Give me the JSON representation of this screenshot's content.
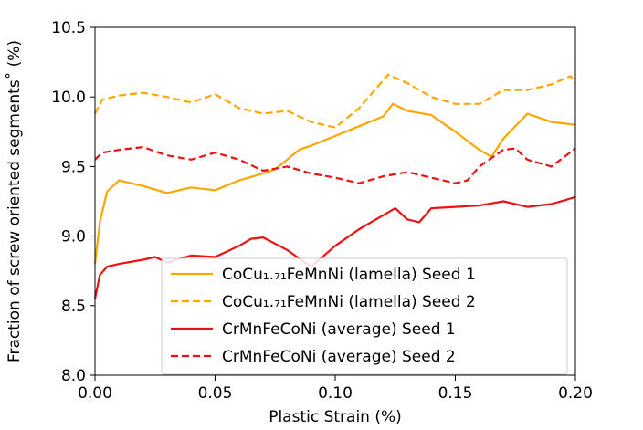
{
  "chart_data": {
    "type": "line",
    "title": "",
    "xlabel": "Plastic Strain (%)",
    "ylabel": "Fraction of screw oriented segments˚ (%)",
    "xlim": [
      0.0,
      0.2
    ],
    "ylim": [
      8.0,
      10.5
    ],
    "xticks": [
      0.0,
      0.05,
      0.1,
      0.15,
      0.2
    ],
    "xtick_labels": [
      "0.00",
      "0.05",
      "0.10",
      "0.15",
      "0.20"
    ],
    "yticks": [
      8.0,
      8.5,
      9.0,
      9.5,
      10.0,
      10.5
    ],
    "ytick_labels": [
      "8.0",
      "8.5",
      "9.0",
      "9.5",
      "10.0",
      "10.5"
    ],
    "grid": false,
    "legend_position": "lower-center",
    "series": [
      {
        "name": "CoCu₁.₇₁FeMnNi (lamella) Seed 1",
        "color": "#FFA500",
        "dash": "solid",
        "x": [
          0.0,
          0.002,
          0.005,
          0.01,
          0.02,
          0.03,
          0.04,
          0.05,
          0.06,
          0.07,
          0.075,
          0.08,
          0.085,
          0.09,
          0.1,
          0.11,
          0.12,
          0.124,
          0.13,
          0.14,
          0.15,
          0.16,
          0.165,
          0.17,
          0.18,
          0.19,
          0.2
        ],
        "y": [
          8.8,
          9.1,
          9.32,
          9.4,
          9.36,
          9.31,
          9.35,
          9.33,
          9.4,
          9.45,
          9.48,
          9.55,
          9.62,
          9.65,
          9.72,
          9.79,
          9.86,
          9.95,
          9.9,
          9.87,
          9.75,
          9.62,
          9.57,
          9.7,
          9.88,
          9.82,
          9.8
        ]
      },
      {
        "name": "CoCu₁.₇₁FeMnNi (lamella) Seed 2",
        "color": "#FFA500",
        "dash": "dashed",
        "x": [
          0.0,
          0.003,
          0.01,
          0.02,
          0.03,
          0.04,
          0.05,
          0.06,
          0.07,
          0.08,
          0.09,
          0.1,
          0.11,
          0.12,
          0.122,
          0.13,
          0.14,
          0.15,
          0.16,
          0.17,
          0.18,
          0.19,
          0.198,
          0.2
        ],
        "y": [
          9.88,
          9.98,
          10.01,
          10.03,
          10.0,
          9.96,
          10.02,
          9.92,
          9.88,
          9.9,
          9.82,
          9.78,
          9.92,
          10.12,
          10.16,
          10.1,
          10.0,
          9.95,
          9.95,
          10.05,
          10.05,
          10.09,
          10.15,
          10.1
        ]
      },
      {
        "name": "CrMnFeCoNi (average) Seed 1",
        "color": "#EE1111",
        "dash": "solid",
        "x": [
          0.0,
          0.002,
          0.005,
          0.01,
          0.02,
          0.025,
          0.03,
          0.04,
          0.05,
          0.06,
          0.065,
          0.07,
          0.08,
          0.085,
          0.09,
          0.1,
          0.11,
          0.12,
          0.125,
          0.13,
          0.135,
          0.14,
          0.15,
          0.16,
          0.17,
          0.18,
          0.19,
          0.2
        ],
        "y": [
          8.55,
          8.72,
          8.78,
          8.8,
          8.83,
          8.85,
          8.81,
          8.86,
          8.85,
          8.93,
          8.98,
          8.99,
          8.9,
          8.84,
          8.78,
          8.93,
          9.05,
          9.15,
          9.2,
          9.12,
          9.1,
          9.2,
          9.21,
          9.22,
          9.25,
          9.21,
          9.23,
          9.28
        ]
      },
      {
        "name": "CrMnFeCoNi (average) Seed 2",
        "color": "#EE1111",
        "dash": "dashed",
        "x": [
          0.0,
          0.003,
          0.01,
          0.02,
          0.03,
          0.04,
          0.05,
          0.06,
          0.07,
          0.08,
          0.09,
          0.1,
          0.11,
          0.12,
          0.13,
          0.14,
          0.15,
          0.155,
          0.16,
          0.17,
          0.175,
          0.18,
          0.19,
          0.2
        ],
        "y": [
          9.55,
          9.6,
          9.62,
          9.64,
          9.58,
          9.55,
          9.6,
          9.55,
          9.47,
          9.5,
          9.45,
          9.42,
          9.38,
          9.43,
          9.46,
          9.42,
          9.38,
          9.4,
          9.5,
          9.62,
          9.63,
          9.55,
          9.5,
          9.63
        ]
      }
    ]
  }
}
